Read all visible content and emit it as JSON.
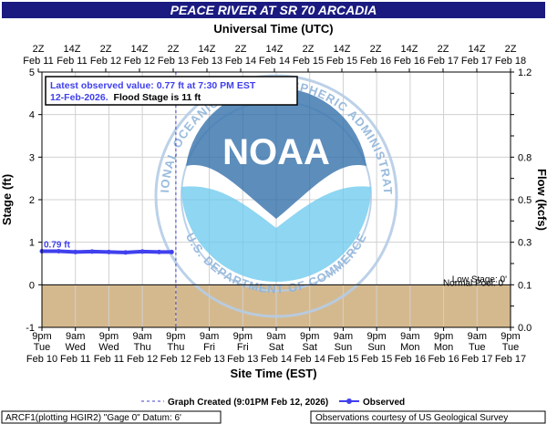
{
  "header": {
    "title": "PEACE RIVER AT SR 70 ARCADIA",
    "top_axis_title": "Universal Time (UTC)",
    "bottom_axis_title": "Site Time (EST)",
    "left_axis_title": "Stage (ft)",
    "right_axis_title": "Flow (kcfs)"
  },
  "annotation": {
    "line1": "Latest observed value: 0.77 ft at 7:30 PM EST",
    "line2_date": "12-Feb-2026.",
    "line2_flood": "Flood Stage is 11 ft",
    "first_value_label": "0.79 ft"
  },
  "thresholds": {
    "low_stage_label": "Low Stage: 0'",
    "normal_pool_label": "Normal Pool: 0'"
  },
  "watermark": {
    "logo_text": "NOAA",
    "ring_text": "NATIONAL OCEANIC AND ATMOSPHERIC ADMINISTRATION",
    "bottom_text": "U.S. DEPARTMENT OF COMMERCE"
  },
  "footer": {
    "graph_created": "Graph Created (9:01PM Feb 12, 2026)",
    "observed_label": "Observed",
    "plotting_info": "ARCF1(plotting HGIR2) \"Gage 0\" Datum: 6'",
    "credit": "Observations courtesy of US Geological Survey"
  },
  "colors": {
    "title_bg": "#1a1a80",
    "plot_bg": "#ffffff",
    "grid": "#d0d0d0",
    "below_zero_fill": "#d5b98e",
    "observed_line": "#4040ee",
    "annotation_text": "#4040ee",
    "graph_created_line": "#4040cc",
    "watermark": "#9cc6e8"
  },
  "chart_data": {
    "type": "line",
    "title": "PEACE RIVER AT SR 70 ARCADIA",
    "left_axis": {
      "label": "Stage (ft)",
      "range": [
        -1,
        5
      ],
      "ticks": [
        -1,
        0,
        1,
        2,
        3,
        4,
        5
      ]
    },
    "right_axis": {
      "label": "Flow (kcfs)",
      "range": [
        0.0,
        1.2
      ],
      "ticks": [
        "0.0",
        "0.1",
        "0.2",
        "0.3",
        "0.4",
        "0.5",
        "0.6",
        "0.7",
        "0.8",
        "0.9",
        "1.0",
        "1.1",
        "1.2"
      ],
      "labeled_ticks": [
        "0.0",
        "0.1",
        "0.3",
        "0.5",
        "0.8",
        "1.2"
      ]
    },
    "top_axis": {
      "label": "Universal Time (UTC)",
      "ticks": [
        {
          "time": "2Z",
          "date": "Feb 11"
        },
        {
          "time": "14Z",
          "date": "Feb 11"
        },
        {
          "time": "2Z",
          "date": "Feb 12"
        },
        {
          "time": "14Z",
          "date": "Feb 12"
        },
        {
          "time": "2Z",
          "date": "Feb 13"
        },
        {
          "time": "14Z",
          "date": "Feb 13"
        },
        {
          "time": "2Z",
          "date": "Feb 14"
        },
        {
          "time": "14Z",
          "date": "Feb 14"
        },
        {
          "time": "2Z",
          "date": "Feb 15"
        },
        {
          "time": "14Z",
          "date": "Feb 15"
        },
        {
          "time": "2Z",
          "date": "Feb 16"
        },
        {
          "time": "14Z",
          "date": "Feb 16"
        },
        {
          "time": "2Z",
          "date": "Feb 17"
        },
        {
          "time": "14Z",
          "date": "Feb 17"
        },
        {
          "time": "2Z",
          "date": "Feb 18"
        }
      ]
    },
    "bottom_axis": {
      "label": "Site Time (EST)",
      "ticks": [
        {
          "time": "9pm",
          "day": "Tue",
          "date": "Feb 10"
        },
        {
          "time": "9am",
          "day": "Wed",
          "date": "Feb 11"
        },
        {
          "time": "9pm",
          "day": "Wed",
          "date": "Feb 11"
        },
        {
          "time": "9am",
          "day": "Thu",
          "date": "Feb 12"
        },
        {
          "time": "9pm",
          "day": "Thu",
          "date": "Feb 12"
        },
        {
          "time": "9am",
          "day": "Fri",
          "date": "Feb 13"
        },
        {
          "time": "9pm",
          "day": "Fri",
          "date": "Feb 13"
        },
        {
          "time": "9am",
          "day": "Sat",
          "date": "Feb 14"
        },
        {
          "time": "9pm",
          "day": "Sat",
          "date": "Feb 14"
        },
        {
          "time": "9am",
          "day": "Sun",
          "date": "Feb 15"
        },
        {
          "time": "9pm",
          "day": "Sun",
          "date": "Feb 15"
        },
        {
          "time": "9am",
          "day": "Mon",
          "date": "Feb 16"
        },
        {
          "time": "9pm",
          "day": "Mon",
          "date": "Feb 16"
        },
        {
          "time": "9am",
          "day": "Tue",
          "date": "Feb 17"
        },
        {
          "time": "9pm",
          "day": "Tue",
          "date": "Feb 17"
        }
      ]
    },
    "graph_created_time": "2026-02-12T21:01",
    "series": [
      {
        "name": "Observed",
        "x": [
          "2026-02-10T21:00",
          "2026-02-11T03:00",
          "2026-02-11T09:00",
          "2026-02-11T15:00",
          "2026-02-11T21:00",
          "2026-02-12T03:00",
          "2026-02-12T09:00",
          "2026-02-12T15:00",
          "2026-02-12T19:30"
        ],
        "y": [
          0.79,
          0.79,
          0.77,
          0.78,
          0.77,
          0.76,
          0.78,
          0.77,
          0.77
        ]
      }
    ],
    "thresholds": [
      {
        "name": "Low Stage",
        "value": 0
      },
      {
        "name": "Normal Pool",
        "value": 0
      }
    ],
    "grid": true
  }
}
